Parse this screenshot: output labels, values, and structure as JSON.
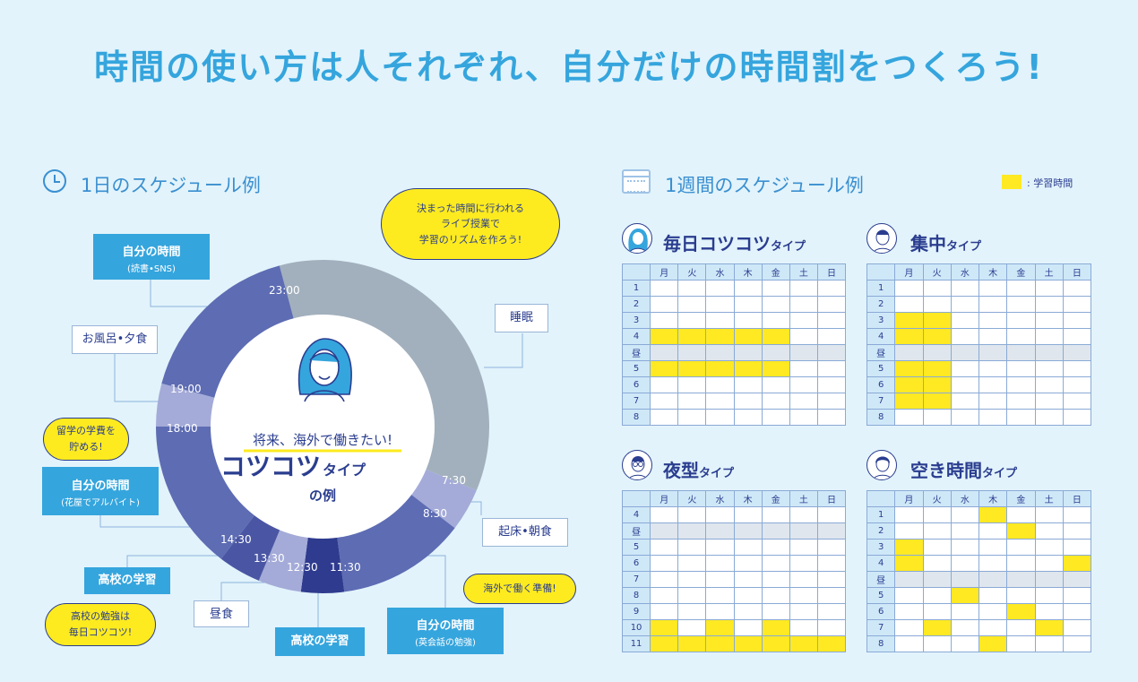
{
  "headline": "時間の使い方は人それぞれ、自分だけの時間割をつくろう!",
  "day_section": {
    "title": "1日のスケジュール例",
    "center": {
      "tagline": "将来、海外で働きたい!",
      "type_main": "コツコツ",
      "type_suffix": "タイプ",
      "example": "の例"
    },
    "time_labels": [
      "23:00",
      "19:00",
      "18:00",
      "14:30",
      "13:30",
      "12:30",
      "11:30",
      "8:30",
      "7:30"
    ],
    "ring_colors": {
      "sleep": "#a2b0bd",
      "own": "#5d6cb3",
      "bath": "#a4abd8",
      "school": "#4a56a3",
      "lunch": "#a4abd8",
      "school_dark": "#2e3b8e"
    },
    "boxes": {
      "own_reading": {
        "label": "自分の時間",
        "sub": "(読書•SNS)"
      },
      "bath": {
        "label": "お風呂•夕食"
      },
      "sleep": {
        "label": "睡眠"
      },
      "own_parttime": {
        "label": "自分の時間",
        "sub": "(花屋でアルバイト)"
      },
      "wake": {
        "label": "起床•朝食"
      },
      "school_study1": {
        "label": "高校の学習"
      },
      "lunch": {
        "label": "昼食"
      },
      "school_study2": {
        "label": "高校の学習"
      },
      "own_english": {
        "label": "自分の時間",
        "sub": "(英会話の勉強)"
      }
    },
    "bubbles": {
      "live": "決まった時間に行われる\nライブ授業で\n学習のリズムを作ろう!",
      "save": "留学の学費を\n貯める!",
      "abroad": "海外で働く準備!",
      "school": "高校の勉強は\n毎日コツコツ!"
    }
  },
  "week_section": {
    "title": "1週間のスケジュール例",
    "legend": ": 学習時間",
    "highlight_color": "#ffe923",
    "days": [
      "月",
      "火",
      "水",
      "木",
      "金",
      "土",
      "日"
    ],
    "schedules": [
      {
        "title": "毎日コツコツ",
        "suffix": "タイプ",
        "rows": [
          {
            "label": "1",
            "on": [
              0,
              0,
              0,
              0,
              0,
              0,
              0
            ]
          },
          {
            "label": "2",
            "on": [
              0,
              0,
              0,
              0,
              0,
              0,
              0
            ]
          },
          {
            "label": "3",
            "on": [
              0,
              0,
              0,
              0,
              0,
              0,
              0
            ]
          },
          {
            "label": "4",
            "on": [
              1,
              1,
              1,
              1,
              1,
              0,
              0
            ]
          },
          {
            "label": "昼",
            "on": [
              0,
              0,
              0,
              0,
              0,
              0,
              0
            ],
            "lunch": true
          },
          {
            "label": "5",
            "on": [
              1,
              1,
              1,
              1,
              1,
              0,
              0
            ]
          },
          {
            "label": "6",
            "on": [
              0,
              0,
              0,
              0,
              0,
              0,
              0
            ]
          },
          {
            "label": "7",
            "on": [
              0,
              0,
              0,
              0,
              0,
              0,
              0
            ]
          },
          {
            "label": "8",
            "on": [
              0,
              0,
              0,
              0,
              0,
              0,
              0
            ]
          }
        ]
      },
      {
        "title": "集中",
        "suffix": "タイプ",
        "rows": [
          {
            "label": "1",
            "on": [
              0,
              0,
              0,
              0,
              0,
              0,
              0
            ]
          },
          {
            "label": "2",
            "on": [
              0,
              0,
              0,
              0,
              0,
              0,
              0
            ]
          },
          {
            "label": "3",
            "on": [
              1,
              1,
              0,
              0,
              0,
              0,
              0
            ]
          },
          {
            "label": "4",
            "on": [
              1,
              1,
              0,
              0,
              0,
              0,
              0
            ]
          },
          {
            "label": "昼",
            "on": [
              0,
              0,
              0,
              0,
              0,
              0,
              0
            ],
            "lunch": true
          },
          {
            "label": "5",
            "on": [
              1,
              1,
              0,
              0,
              0,
              0,
              0
            ]
          },
          {
            "label": "6",
            "on": [
              1,
              1,
              0,
              0,
              0,
              0,
              0
            ]
          },
          {
            "label": "7",
            "on": [
              1,
              1,
              0,
              0,
              0,
              0,
              0
            ]
          },
          {
            "label": "8",
            "on": [
              0,
              0,
              0,
              0,
              0,
              0,
              0
            ]
          }
        ]
      },
      {
        "title": "夜型",
        "suffix": "タイプ",
        "rows": [
          {
            "label": "4",
            "on": [
              0,
              0,
              0,
              0,
              0,
              0,
              0
            ]
          },
          {
            "label": "昼",
            "on": [
              0,
              0,
              0,
              0,
              0,
              0,
              0
            ],
            "lunch": true
          },
          {
            "label": "5",
            "on": [
              0,
              0,
              0,
              0,
              0,
              0,
              0
            ]
          },
          {
            "label": "6",
            "on": [
              0,
              0,
              0,
              0,
              0,
              0,
              0
            ]
          },
          {
            "label": "7",
            "on": [
              0,
              0,
              0,
              0,
              0,
              0,
              0
            ]
          },
          {
            "label": "8",
            "on": [
              0,
              0,
              0,
              0,
              0,
              0,
              0
            ]
          },
          {
            "label": "9",
            "on": [
              0,
              0,
              0,
              0,
              0,
              0,
              0
            ]
          },
          {
            "label": "10",
            "on": [
              1,
              0,
              1,
              0,
              1,
              0,
              0
            ]
          },
          {
            "label": "11",
            "on": [
              1,
              1,
              1,
              1,
              1,
              1,
              1
            ]
          }
        ]
      },
      {
        "title": "空き時間",
        "suffix": "タイプ",
        "rows": [
          {
            "label": "1",
            "on": [
              0,
              0,
              0,
              1,
              0,
              0,
              0
            ]
          },
          {
            "label": "2",
            "on": [
              0,
              0,
              0,
              0,
              1,
              0,
              0
            ]
          },
          {
            "label": "3",
            "on": [
              1,
              0,
              0,
              0,
              0,
              0,
              0
            ]
          },
          {
            "label": "4",
            "on": [
              1,
              0,
              0,
              0,
              0,
              0,
              1
            ]
          },
          {
            "label": "昼",
            "on": [
              0,
              0,
              0,
              0,
              0,
              0,
              0
            ],
            "lunch": true
          },
          {
            "label": "5",
            "on": [
              0,
              0,
              1,
              0,
              0,
              0,
              0
            ]
          },
          {
            "label": "6",
            "on": [
              0,
              0,
              0,
              0,
              1,
              0,
              0
            ]
          },
          {
            "label": "7",
            "on": [
              0,
              1,
              0,
              0,
              0,
              1,
              0
            ]
          },
          {
            "label": "8",
            "on": [
              0,
              0,
              0,
              1,
              0,
              0,
              0
            ]
          }
        ]
      }
    ]
  }
}
